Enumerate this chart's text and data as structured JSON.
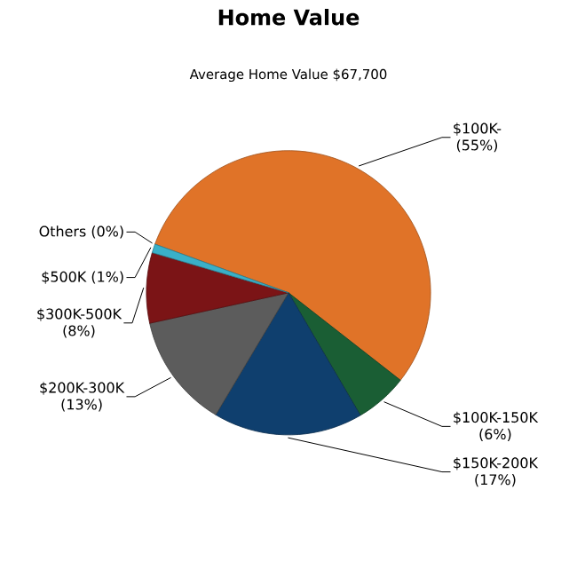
{
  "chart_data": {
    "type": "pie",
    "title": "Home Value",
    "subtitle": "Average Home Value  $67,700",
    "categories": [
      "$100K-",
      "$100K-150K",
      "$150K-200K",
      "$200K-300K",
      "$300K-500K",
      "$500K",
      "Others"
    ],
    "values": [
      55,
      6,
      17,
      13,
      8,
      1,
      0
    ],
    "value_labels": [
      "(55%)",
      "(6%)",
      "(17%)",
      "(13%)",
      "(8%)",
      "(1%)",
      "(0%)"
    ],
    "colors": [
      "#e07328",
      "#1a5e34",
      "#0f3f6e",
      "#5c5c5c",
      "#7b1416",
      "#3ab0c8",
      "#9fd4e6"
    ]
  }
}
